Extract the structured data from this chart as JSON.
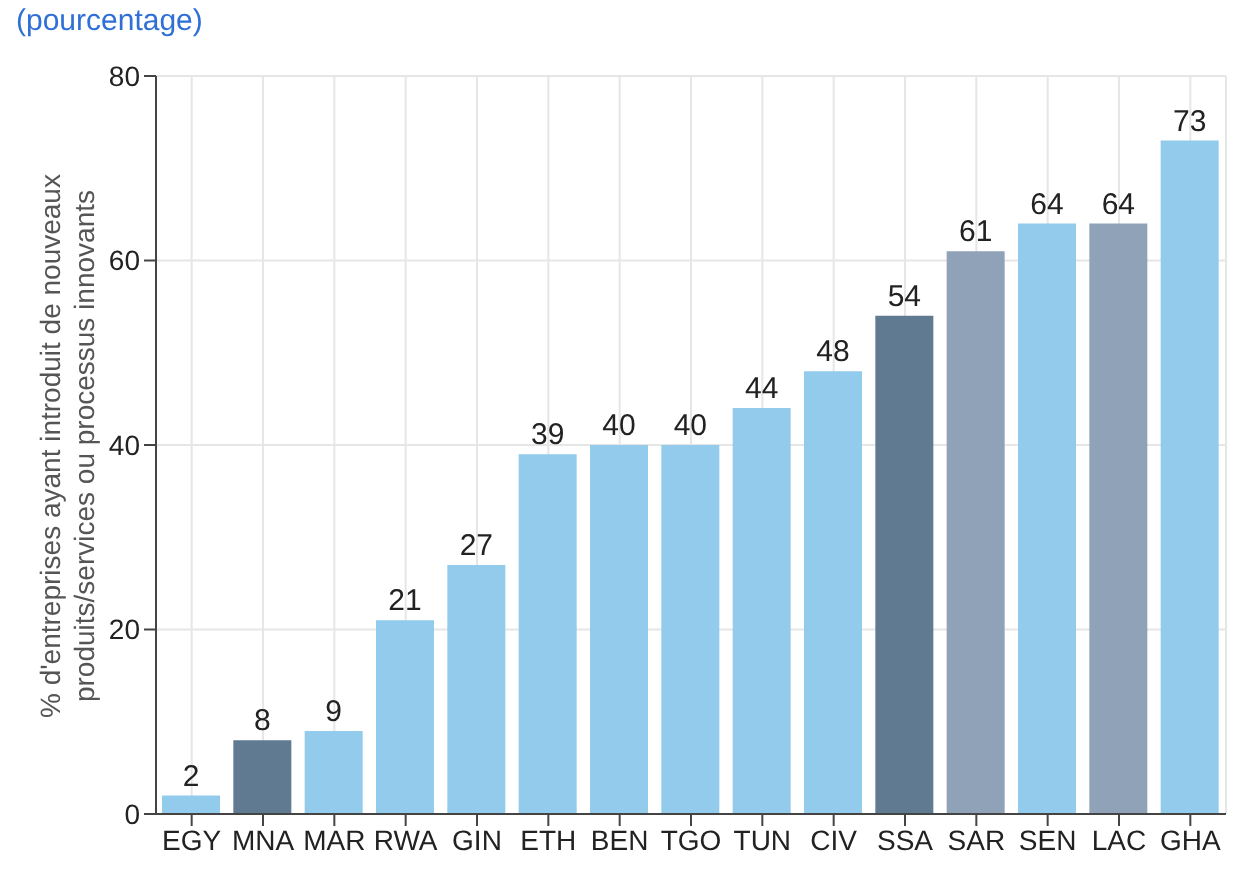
{
  "chart_data": {
    "type": "bar",
    "title": "(pourcentage)",
    "ylabel": "% d'entreprises ayant introduit de nouveaux\nproduits/services ou processus innovants",
    "categories": [
      "EGY",
      "MNA",
      "MAR",
      "RWA",
      "GIN",
      "ETH",
      "BEN",
      "TGO",
      "TUN",
      "CIV",
      "SSA",
      "SAR",
      "SEN",
      "LAC",
      "GHA"
    ],
    "values": [
      2,
      8,
      9,
      21,
      27,
      39,
      40,
      40,
      44,
      48,
      54,
      61,
      64,
      64,
      73
    ],
    "colors": [
      "#92cbec",
      "#5f7a91",
      "#92cbec",
      "#92cbec",
      "#92cbec",
      "#92cbec",
      "#92cbec",
      "#92cbec",
      "#92cbec",
      "#92cbec",
      "#5f7a91",
      "#8fa2b8",
      "#92cbec",
      "#8fa2b8",
      "#92cbec"
    ],
    "ylim": [
      0,
      80
    ],
    "yticks": [
      0,
      20,
      40,
      60,
      80
    ],
    "grid": true,
    "data_labels": true
  }
}
